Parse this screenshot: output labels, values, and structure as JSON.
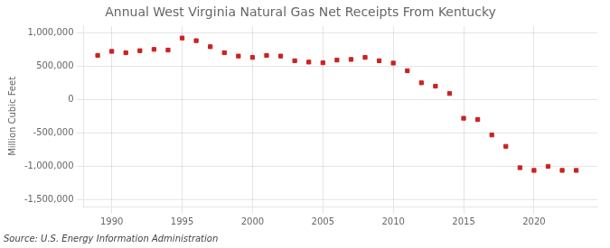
{
  "chart_data": {
    "type": "scatter",
    "title": "Annual West Virginia Natural Gas Net Receipts From Kentucky",
    "ylabel": "Million Cubic Feet",
    "annotations": [
      "Source: U.S. Energy Information Administration"
    ],
    "x": [
      1989,
      1990,
      1991,
      1992,
      1993,
      1994,
      1995,
      1996,
      1997,
      1998,
      1999,
      2000,
      2001,
      2002,
      2003,
      2004,
      2005,
      2006,
      2007,
      2008,
      2009,
      2010,
      2011,
      2012,
      2013,
      2014,
      2015,
      2016,
      2017,
      2018,
      2019,
      2020,
      2021,
      2022,
      2023
    ],
    "values": [
      660000,
      720000,
      700000,
      730000,
      750000,
      740000,
      920000,
      880000,
      790000,
      700000,
      650000,
      630000,
      660000,
      650000,
      580000,
      560000,
      550000,
      590000,
      600000,
      630000,
      580000,
      545000,
      430000,
      250000,
      200000,
      90000,
      -280000,
      -300000,
      -530000,
      -700000,
      -1020000,
      -1060000,
      -1000000,
      -1060000,
      -1060000
    ],
    "color": "#cc2222",
    "marker": "square",
    "xlim": [
      1988.0,
      2024.5
    ],
    "xticks": [
      1990,
      1995,
      2000,
      2005,
      2010,
      2015,
      2020
    ],
    "ylim": [
      -1600000,
      1100000
    ],
    "yticks": [
      {
        "value": -1500000,
        "label": "-1,500,000"
      },
      {
        "value": -1000000,
        "label": "-1,000,000"
      },
      {
        "value": -500000,
        "label": "-500,000"
      },
      0,
      {
        "value": 500000,
        "label": "500,000"
      },
      {
        "value": 1000000,
        "label": "1,000,000"
      }
    ],
    "grid": true
  }
}
